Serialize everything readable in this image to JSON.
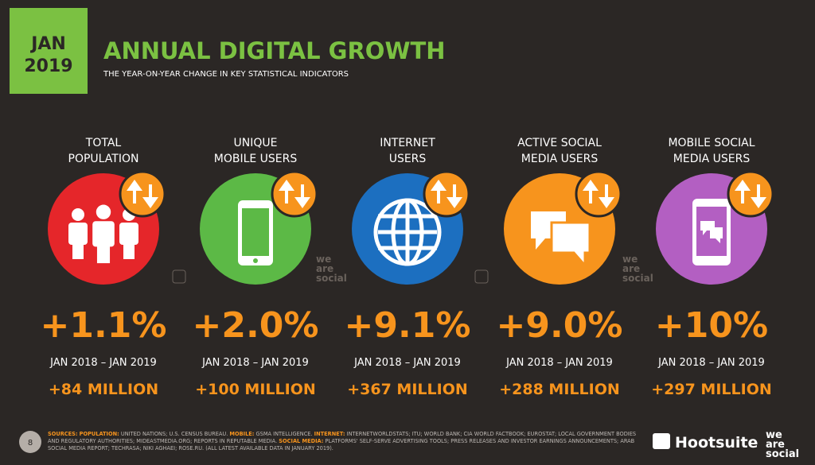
{
  "header": {
    "badge": [
      "JAN",
      "2019"
    ],
    "title": "ANNUAL DIGITAL GROWTH",
    "subtitle": "THE YEAR-ON-YEAR CHANGE IN KEY STATISTICAL INDICATORS"
  },
  "cards": [
    {
      "label": [
        "TOTAL",
        "POPULATION"
      ],
      "change": "+1.1%",
      "period": "JAN 2018 – JAN 2019",
      "absolute": "+84 MILLION",
      "color": "#e5262a"
    },
    {
      "label": [
        "UNIQUE",
        "MOBILE USERS"
      ],
      "change": "+2.0%",
      "period": "JAN 2018 – JAN 2019",
      "absolute": "+100 MILLION",
      "color": "#5cb946"
    },
    {
      "label": [
        "INTERNET",
        "USERS"
      ],
      "change": "+9.1%",
      "period": "JAN 2018 – JAN 2019",
      "absolute": "+367 MILLION",
      "color": "#1c6fc0"
    },
    {
      "label": [
        "ACTIVE SOCIAL",
        "MEDIA USERS"
      ],
      "change": "+9.0%",
      "period": "JAN 2018 – JAN 2019",
      "absolute": "+288 MILLION",
      "color": "#f7941d"
    },
    {
      "label": [
        "MOBILE SOCIAL",
        "MEDIA USERS"
      ],
      "change": "+10%",
      "period": "JAN 2018 – JAN 2019",
      "absolute": "+297 MILLION",
      "color": "#b35fc2"
    }
  ],
  "watermark": [
    "we",
    "are",
    "social"
  ],
  "sources": {
    "title": "SOURCES:",
    "items": [
      {
        "label": "POPULATION:",
        "text": "UNITED NATIONS; U.S. CENSUS BUREAU."
      },
      {
        "label": "MOBILE:",
        "text": "GSMA INTELLIGENCE."
      },
      {
        "label": "INTERNET:",
        "text": "INTERNETWORLDSTATS; ITU; WORLD BANK; CIA WORLD FACTBOOK; EUROSTAT; LOCAL GOVERNMENT BODIES AND REGULATORY AUTHORITIES; MIDEASTMEDIA.ORG; REPORTS IN REPUTABLE MEDIA."
      },
      {
        "label": "SOCIAL MEDIA:",
        "text": "PLATFORMS' SELF-SERVE ADVERTISING TOOLS; PRESS RELEASES AND INVESTOR EARNINGS ANNOUNCEMENTS; ARAB SOCIAL MEDIA REPORT; TECHRASA; NIKI AGHAEI; ROSE.RU. (ALL LATEST AVAILABLE DATA IN JANUARY 2019)."
      }
    ]
  },
  "footer": {
    "page": "8",
    "brand": "Hootsuite"
  }
}
